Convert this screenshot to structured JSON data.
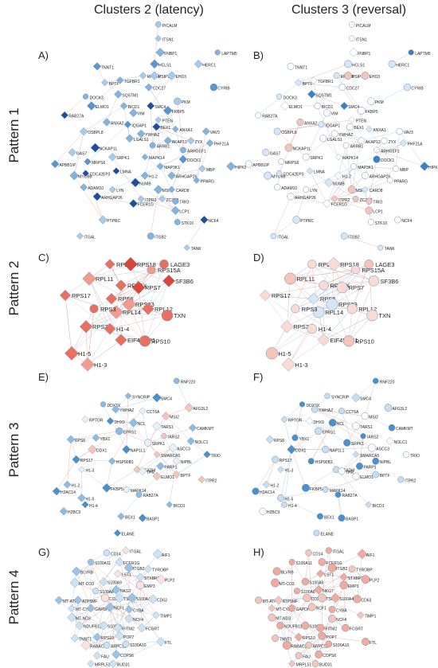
{
  "columns": [
    "Clusters 2 (latency)",
    "Clusters 3 (reversal)"
  ],
  "rows": [
    "Pattern 1",
    "Pattern 2",
    "Pattern 3",
    "Pattern 4"
  ],
  "panels": [
    {
      "letter": "A)",
      "row": 0,
      "col": 0,
      "style": "latency"
    },
    {
      "letter": "B)",
      "row": 0,
      "col": 1,
      "style": "reversal"
    },
    {
      "letter": "C)",
      "row": 1,
      "col": 0,
      "style": "latency"
    },
    {
      "letter": "D)",
      "row": 1,
      "col": 1,
      "style": "reversal"
    },
    {
      "letter": "E)",
      "row": 2,
      "col": 0,
      "style": "latency"
    },
    {
      "letter": "F)",
      "row": 2,
      "col": 1,
      "style": "reversal"
    },
    {
      "letter": "G)",
      "row": 3,
      "col": 0,
      "style": "latency"
    },
    {
      "letter": "H)",
      "row": 3,
      "col": 1,
      "style": "reversal"
    }
  ],
  "networks": [
    {
      "nodes": [
        "PICALM",
        "ITSN1",
        "FNBP1",
        "LAPTM5",
        "TNNT1",
        "HCLS1",
        "RPTOR",
        "HERC1",
        "BPTF",
        "TGFBR1",
        "PSIP1",
        "EHD3",
        "CDC27",
        "CYRIB",
        "DOCK3",
        "SQSTM1",
        "BICD1",
        "SMC4",
        "PKM",
        "FKBP5",
        "ELMO1",
        "VIM",
        "PTEN",
        "RAB27A",
        "ANXA2",
        "IQGAP1",
        "YWHAZ",
        "BEX1",
        "ANXA1",
        "VAV3",
        "OSBPL8",
        "LGALS1",
        "AKAP13",
        "ZYX",
        "PHF21A",
        "GAS7",
        "NCKAP1L",
        "ARRB1",
        "ARHGEF1",
        "APBB1IP",
        "MRPS6",
        "SRPK1",
        "MAPK14",
        "MAP3K1",
        "DOCK1",
        "MBP",
        "HIPK2",
        "MYO9B",
        "CDC42EP3",
        "LMNA",
        "H1-2",
        "ARHGAP26",
        "PPARG",
        "ADAM10",
        "NUMB",
        "MSN",
        "CARD8",
        "LYN",
        "ITPR2",
        "ZC3H3",
        "TRIO",
        "ARHGAP26",
        "FCER1G",
        "LCP1",
        "PTPRC",
        "STK10",
        "NCF4",
        "ITGAL",
        "ITGB2",
        "TANK"
      ],
      "labels": [
        "PICALM",
        "ITSN1",
        "FNBP1",
        "LAPTM5",
        "TNNT1",
        "HCLS1",
        "RPTOR",
        "HERC1",
        "BPTF",
        "TGFBR1",
        "PSIP1",
        "EHD3",
        "CDC27",
        "CYRIB",
        "DOCK3",
        "SQSTM1",
        "BICD1",
        "SMC4",
        "PKM",
        "FKBP5",
        "ELMO1",
        "VIM",
        "PTEN",
        "RAB27A",
        "ANXA2",
        "IQGAP1",
        "YWHAZ",
        "BEX1",
        "ANXA1",
        "VAV3",
        "OSBPL8",
        "LGALS1",
        "AKAP13",
        "ZYX",
        "PHF21A",
        "GAS7",
        "NCKAP1L",
        "ARRB1",
        "ARHGEF1",
        "APBB1IP",
        "MRPS6",
        "SRPK1",
        "MAPK14",
        "MAP3K1",
        "DOCK1",
        "MBP",
        "HIPK2",
        "MYO9B",
        "CDC42EP3",
        "LMNA",
        "H1-2",
        "ARHGAP26",
        "PPARG",
        "ADAM10",
        "NUMB",
        "MSN",
        "CARD8",
        "LYN",
        "ITPR2",
        "ZC3H3",
        "TRIO",
        "ARHGAP26",
        "FCER1G",
        "LCP1",
        "PTPRC",
        "STK10",
        "NCF4",
        "ITGAL",
        "ITGB2",
        "TANK"
      ]
    },
    {
      "labels": [
        "PICALM",
        "ITSN1",
        "FNBP1",
        "LAPTM5",
        "TNNT1",
        "HCLS1",
        "RPTOR",
        "HERC1",
        "BPTF",
        "TGFBR1",
        "PSIP1",
        "EHD3",
        "CDC27",
        "CYRIB",
        "DOCK3",
        "SQSTM1",
        "BICD1",
        "SMC4",
        "PKM",
        "FKBP5",
        "ELMO1",
        "VIM",
        "PTEN",
        "RAB27A",
        "ANXA2",
        "IQGAP1",
        "YWHAZ",
        "BEX1",
        "ANXA1",
        "VAV3",
        "OSBPL8",
        "LGALS1",
        "AKAP13",
        "ZYX",
        "PHF21A",
        "GAS7",
        "NCKAP1L",
        "ARRB1",
        "ARHGEF1",
        "APBB1IP",
        "MRPS6",
        "SRPK1",
        "MAPK14",
        "MAP3K1",
        "DOCK1",
        "MBP",
        "HIPK2",
        "MYO9B",
        "CDC42EP3",
        "LMNA",
        "H1-2",
        "ARHGAP26",
        "PPARG",
        "ADAM10",
        "NUMB",
        "MSN",
        "CARD8",
        "LYN",
        "ITPR2",
        "ZC3H3",
        "TRIO",
        "ARHGAP26",
        "FCER1G",
        "LCP1",
        "PTPRC",
        "STK10",
        "NCF4",
        "ITGAL",
        "ITGB2",
        "TANK"
      ]
    },
    {
      "labels": [
        "LAGE3",
        "RPL7A",
        "RPS18",
        "RPS15A",
        "SF3B6",
        "RPL11",
        "RPS4X",
        "RPS7",
        "RPS17",
        "RPS6",
        "RPL14",
        "RPS23",
        "RPL12",
        "TXN",
        "RPS3",
        "RPS3A",
        "H1-4",
        "EIF4EBP1",
        "RPS10",
        "H1-5",
        "H1-3"
      ]
    },
    {
      "labels": [
        "LAGE3",
        "RPL7A",
        "RPS18",
        "RPS15A",
        "SF3B6",
        "RPL11",
        "RPS4X",
        "RPS7",
        "RPS17",
        "RPS6",
        "RPL14",
        "RPS23",
        "RPL12",
        "TXN",
        "RPS3",
        "RPS3A",
        "H1-4",
        "EIF4EBP1",
        "RPS10",
        "H1-5",
        "H1-3"
      ]
    },
    {
      "labels": [
        "RNF220",
        "SYNCRIP",
        "SMC4",
        "DDX3X",
        "YWHAZ",
        "AFG3L2",
        "CCT6A",
        "MSI2",
        "RPTOR",
        "DHX9",
        "NCL",
        "TARS1",
        "CAMKMT",
        "EPRS1",
        "IARS2",
        "RPS8",
        "YBX1",
        "NOLC1",
        "SRPK1",
        "ASCC3",
        "DDX1",
        "NAP1L1",
        "SMARCA5",
        "TRIO",
        "RPS17",
        "HSP90B1",
        "PARP1",
        "NIPBL",
        "H1-3",
        "ACADM",
        "TPR",
        "ELMO1",
        "BPTF",
        "ITPR2",
        "H1-2",
        "H2AC14",
        "FKBP5",
        "MAPK14",
        "RAB27A",
        "H1-5",
        "H1-4",
        "H2BC9",
        "BICD1",
        "BEX1",
        "BASP1",
        "ELANE"
      ]
    },
    {
      "labels": [
        "RNF220",
        "SYNCRIP",
        "SMC4",
        "DDX3X",
        "YWHAZ",
        "AFG3L2",
        "CCT6A",
        "MSI2",
        "RPTOR",
        "DHX9",
        "NCL",
        "TARS1",
        "CAMKMT",
        "EPRS1",
        "IARS2",
        "RPS8",
        "YBX1",
        "NOLC1",
        "SRPK1",
        "ASCC3",
        "DDX1",
        "NAP1L1",
        "SMARCA5",
        "TRIO",
        "RPS17",
        "HSP90B1",
        "PARP1",
        "NIPBL",
        "H1-3",
        "ACADM",
        "TPR",
        "ELMO1",
        "BPTF",
        "ITPR2",
        "H1-2",
        "H2AC14",
        "FKBP5",
        "MAPK14",
        "RAB27A",
        "H1-5",
        "H1-4",
        "H2BC9",
        "BICD1",
        "BEX1",
        "BASP1",
        "ELANE"
      ]
    },
    {
      "labels": [
        "CD14",
        "ITGAL",
        "AIF1",
        "S100A11",
        "FCER1G",
        "ITGB2",
        "TYROBP",
        "BLVRB",
        "LST1",
        "STXBP2",
        "PLP2",
        "MT-CO3",
        "S100A9",
        "EMP3",
        "S100A8",
        "NKG7",
        "MT-ATP8",
        "ATP5MF",
        "COX8A",
        "TSPO",
        "S100A4",
        "CD63",
        "MT-CYB",
        "GAPDH",
        "NCF1",
        "CYBA",
        "MT-ND3",
        "NCF4",
        "TIMP1",
        "NDUFB11",
        "S100A6",
        "IFITM2",
        "FCGRT",
        "TNNT1",
        "RPS10",
        "POP7",
        "RABAC1",
        "ARPC1B",
        "S100A10",
        "FTL",
        "FAU",
        "COPS6",
        "MRPL51",
        "BUD31"
      ]
    },
    {
      "labels": [
        "CD14",
        "ITGAL",
        "AIF1",
        "S100A11",
        "FCER1G",
        "ITGB2",
        "TYROBP",
        "BLVRB",
        "LST1",
        "STXBP2",
        "PLP2",
        "MT-CO3",
        "S100A9",
        "EMP3",
        "S100A8",
        "NKG7",
        "MT-ATP8",
        "ATP5MF",
        "COX8A",
        "TSPO",
        "S100A4",
        "CD63",
        "MT-CYB",
        "GAPDH",
        "NCF1",
        "CYBA",
        "MT-ND3",
        "NCF4",
        "TIMP1",
        "NDUFB11",
        "S100A6",
        "IFITM2",
        "FCGRT",
        "TNNT1",
        "RPS10",
        "POP7",
        "RABAC1",
        "ARPC1B",
        "S100A10",
        "FTL",
        "FAU",
        "COPS6",
        "MRPL51",
        "BUD31"
      ]
    }
  ]
}
